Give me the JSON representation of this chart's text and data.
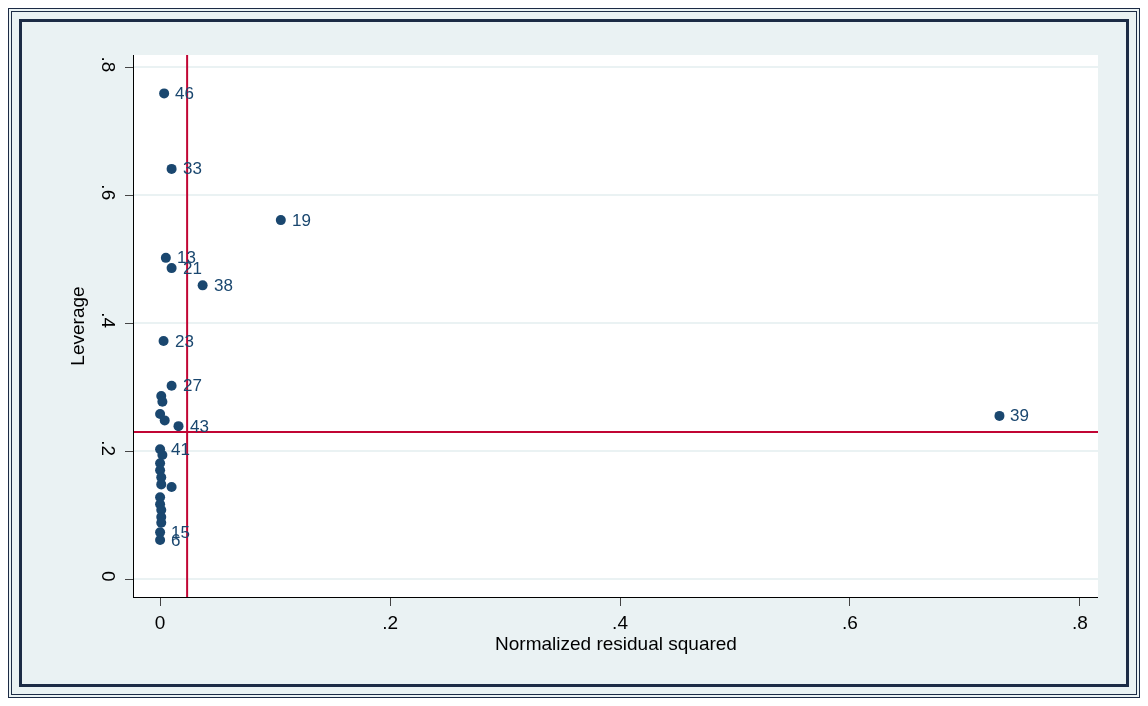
{
  "chart_data": {
    "type": "scatter",
    "xlabel": "Normalized residual squared",
    "ylabel": "Leverage",
    "x": [
      0.0035,
      0.01,
      0.105,
      0.005,
      0.01,
      0.037,
      0.003,
      0.01,
      0.73,
      0.001,
      0.002,
      0.0,
      0.004,
      0.016,
      0.0,
      0.002,
      0.0,
      0.0,
      0.001,
      0.001,
      0.01,
      0.0,
      0.0,
      0.001,
      0.001,
      0.001,
      0.0,
      0.0
    ],
    "series": [
      {
        "color": "#1a476f",
        "values": [
          0.759,
          0.641,
          0.561,
          0.502,
          0.486,
          0.459,
          0.372,
          0.302,
          0.255,
          0.286,
          0.277,
          0.258,
          0.248,
          0.239,
          0.203,
          0.194,
          0.181,
          0.17,
          0.159,
          0.148,
          0.144,
          0.128,
          0.117,
          0.108,
          0.097,
          0.088,
          0.073,
          0.061
        ]
      }
    ],
    "annotations": [
      {
        "text": "46",
        "x": 0.0035,
        "y": 0.759
      },
      {
        "text": "33",
        "x": 0.01,
        "y": 0.641
      },
      {
        "text": "19",
        "x": 0.105,
        "y": 0.561
      },
      {
        "text": "13",
        "x": 0.005,
        "y": 0.502
      },
      {
        "text": "21",
        "x": 0.01,
        "y": 0.486
      },
      {
        "text": "38",
        "x": 0.037,
        "y": 0.459
      },
      {
        "text": "23",
        "x": 0.003,
        "y": 0.372
      },
      {
        "text": "27",
        "x": 0.01,
        "y": 0.302
      },
      {
        "text": "39",
        "x": 0.73,
        "y": 0.255
      },
      {
        "text": "43",
        "x": 0.016,
        "y": 0.239
      },
      {
        "text": "41",
        "x": 0.0,
        "y": 0.203
      },
      {
        "text": "15",
        "x": 0.0,
        "y": 0.073
      },
      {
        "text": "6",
        "x": 0.0,
        "y": 0.061
      }
    ],
    "marker": "circle",
    "grid": "y",
    "xlim": [
      -0.0227,
      0.8157
    ],
    "ylim": [
      -0.028,
      0.819
    ],
    "xticks": [
      0,
      {
        "value": 0.2,
        "label": ".2"
      },
      {
        "value": 0.4,
        "label": ".4"
      },
      {
        "value": 0.6,
        "label": ".6"
      },
      {
        "value": 0.8,
        "label": ".8"
      }
    ],
    "yticks": [
      0,
      {
        "value": 0.2,
        "label": ".2"
      },
      {
        "value": 0.4,
        "label": ".4"
      },
      {
        "value": 0.6,
        "label": ".6"
      },
      {
        "value": 0.8,
        "label": ".8"
      }
    ],
    "ref_lines": [
      {
        "axis": "x",
        "value": 0.0235,
        "color": "#c10534"
      },
      {
        "axis": "y",
        "value": 0.2297,
        "color": "#c10534"
      }
    ]
  }
}
